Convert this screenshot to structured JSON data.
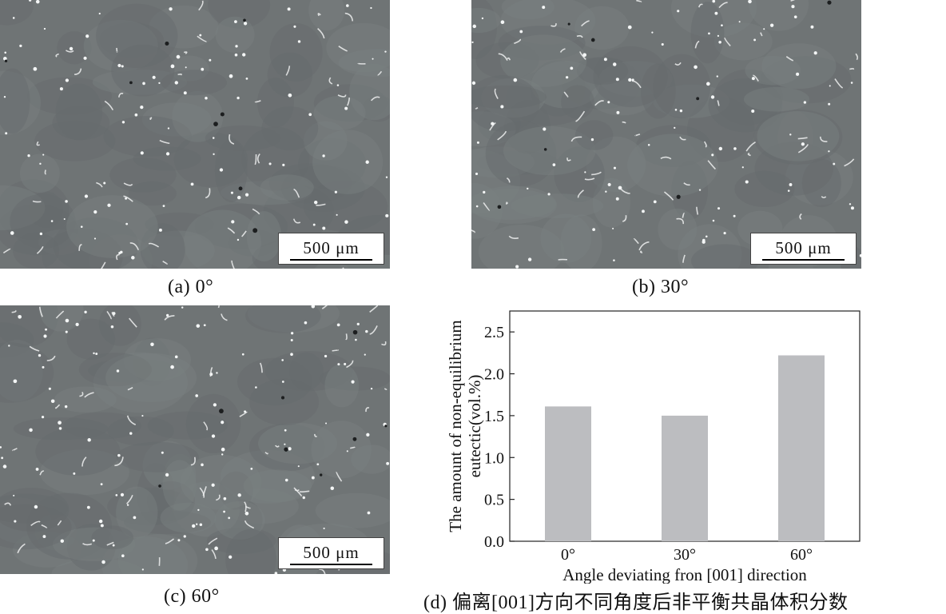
{
  "figures": [
    {
      "id": "a",
      "caption": "(a) 0°",
      "scale_label": "500 μm"
    },
    {
      "id": "b",
      "caption": "(b) 30°",
      "scale_label": "500 μm"
    },
    {
      "id": "c",
      "caption": "(c) 60°",
      "scale_label": "500 μm"
    }
  ],
  "chart_caption": "(d) 偏离[001]方向不同角度后非平衡共晶体积分数",
  "chart_data": {
    "type": "bar",
    "categories": [
      "0°",
      "30°",
      "60°"
    ],
    "values": [
      1.61,
      1.5,
      2.22
    ],
    "xlabel": "Angle deviating fron [001] direction",
    "ylabel_lines": [
      "The amount of non-equilibrium",
      "eutectic(vol.%)"
    ],
    "ylim": [
      0,
      2.75
    ],
    "yticks": [
      "0.0",
      "0.5",
      "1.0",
      "1.5",
      "2.0",
      "2.5"
    ],
    "bar_color": "#bcbdc0",
    "grid": false
  }
}
